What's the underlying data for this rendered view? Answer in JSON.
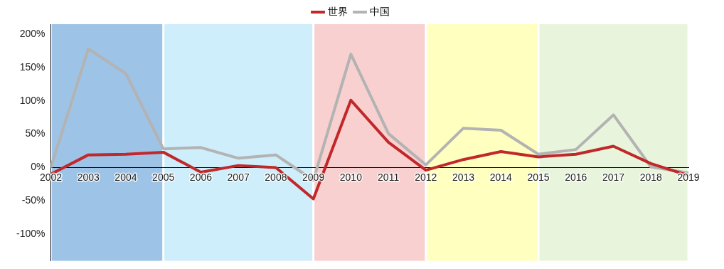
{
  "chart_data": {
    "type": "line",
    "x": [
      2002,
      2003,
      2004,
      2005,
      2006,
      2007,
      2008,
      2009,
      2010,
      2011,
      2012,
      2013,
      2014,
      2015,
      2016,
      2017,
      2018,
      2019
    ],
    "xlim": [
      2002,
      2019
    ],
    "xticks": [
      2002,
      2003,
      2004,
      2005,
      2006,
      2007,
      2008,
      2009,
      2010,
      2011,
      2012,
      2013,
      2014,
      2015,
      2016,
      2017,
      2018,
      2019
    ],
    "ylim": [
      -140,
      215
    ],
    "yticks": [
      {
        "value": -100,
        "label": "-100%"
      },
      {
        "value": -50,
        "label": "-50%"
      },
      {
        "value": 0,
        "label": "0%"
      },
      {
        "value": 50,
        "label": "50%"
      },
      {
        "value": 100,
        "label": "100%"
      },
      {
        "value": 150,
        "label": "150%"
      },
      {
        "value": 200,
        "label": "200%"
      }
    ],
    "series": [
      {
        "name": "世界",
        "color": "#c0282a",
        "values": [
          -10,
          19,
          20,
          23,
          -7,
          3,
          0,
          -47,
          101,
          38,
          -4,
          12,
          24,
          16,
          20,
          32,
          6,
          -12
        ]
      },
      {
        "name": "中国",
        "color": "#b3b3b3",
        "values": [
          0,
          178,
          141,
          28,
          30,
          14,
          19,
          -19,
          170,
          51,
          4,
          59,
          56,
          20,
          27,
          79,
          1,
          -8
        ]
      }
    ],
    "bands": [
      {
        "axis": "x",
        "from": 2002,
        "to": 2005,
        "label": null,
        "color": "#9dc3e6"
      },
      {
        "axis": "x",
        "from": 2005,
        "to": 2009,
        "label": null,
        "color": "#cdeefa"
      },
      {
        "axis": "x",
        "from": 2009,
        "to": 2012,
        "label": null,
        "color": "#f8d0d0"
      },
      {
        "axis": "x",
        "from": 2012,
        "to": 2015,
        "label": null,
        "color": "#ffffc0"
      },
      {
        "axis": "x",
        "from": 2015,
        "to": 2019,
        "label": null,
        "color": "#e8f5dc"
      }
    ],
    "legend": "top",
    "marker": "none"
  }
}
